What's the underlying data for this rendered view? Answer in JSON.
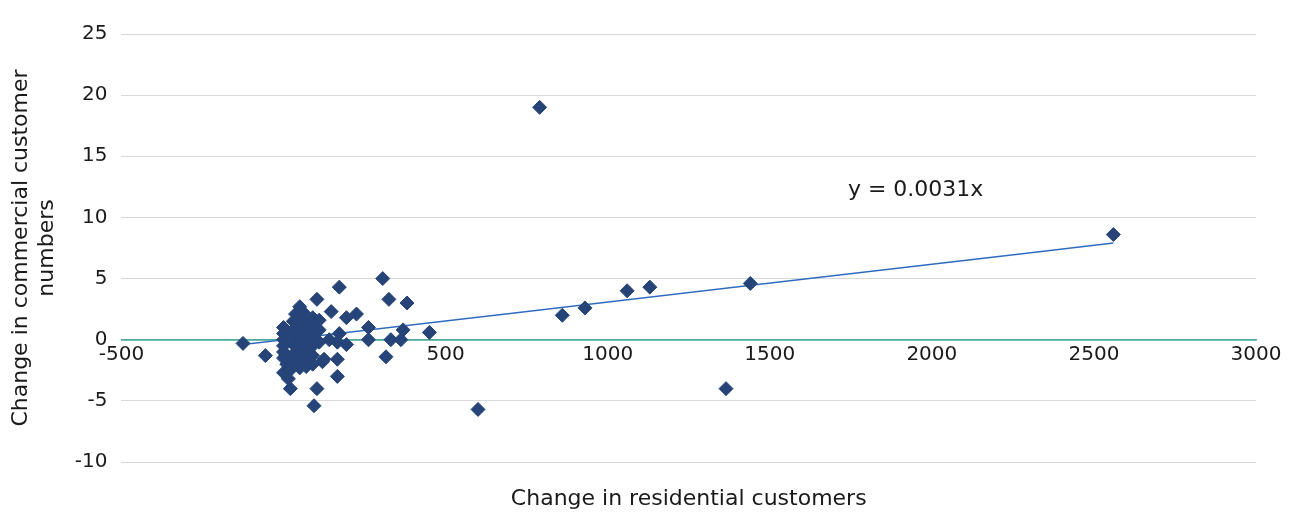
{
  "chart_data": {
    "type": "scatter",
    "xlabel": "Change in residential customers",
    "ylabel": "Change in commercial customer numbers",
    "x": [
      -125,
      -56,
      0,
      21,
      94,
      103,
      166,
      166,
      125,
      172,
      103,
      50,
      147,
      225,
      194,
      306,
      325,
      381,
      262,
      262,
      331,
      362,
      369,
      450,
      316,
      194,
      172,
      166,
      141,
      62,
      37,
      790,
      860,
      930,
      1060,
      1130,
      1440,
      1365,
      2560,
      600,
      0,
      0,
      0,
      0,
      0,
      0,
      10,
      20,
      15,
      30,
      30,
      30,
      30,
      30,
      30,
      50,
      50,
      50,
      50,
      50,
      50,
      50,
      70,
      70,
      70,
      70,
      70,
      70,
      90,
      90,
      90,
      90,
      90,
      90,
      110,
      110,
      110,
      120
    ],
    "values": [
      -0.3,
      -1.3,
      -2.7,
      -4.0,
      -5.4,
      -4.0,
      -3.0,
      -1.6,
      -1.6,
      4.3,
      3.3,
      2.7,
      2.3,
      2.1,
      1.8,
      5.0,
      3.3,
      3.0,
      1.0,
      0,
      0,
      0,
      0.8,
      0.6,
      -1.4,
      -0.4,
      0.5,
      -0.2,
      0,
      2.2,
      2.1,
      19,
      2,
      2.6,
      4,
      4.3,
      4.6,
      -4,
      8.6,
      -5.7,
      1.0,
      0.5,
      0,
      -0.5,
      -1.0,
      -1.5,
      -2.0,
      -2.5,
      -3.2,
      1.5,
      0.8,
      0.2,
      -0.4,
      -1.2,
      -1.8,
      1.8,
      1.0,
      0.3,
      -0.3,
      -1.0,
      -1.7,
      -2.3,
      1.4,
      0.6,
      0,
      -0.8,
      -1.5,
      -2.2,
      1.8,
      1.0,
      0.3,
      -0.5,
      -1.3,
      -2.0,
      1.6,
      0.8,
      -0.2,
      -1.8
    ],
    "color": "#264478",
    "marker": "diamond",
    "series": [
      {
        "type": "line",
        "x": [
          -125,
          2560
        ],
        "values": [
          -0.4,
          7.9
        ],
        "color": "#2e6bbf",
        "marker": "none"
      }
    ],
    "annotations": [
      "y = 0.0031x"
    ],
    "xlim": [
      -500,
      3000
    ],
    "xticks": [
      -500,
      0,
      500,
      1000,
      1500,
      2000,
      2500,
      3000
    ],
    "ylim": [
      -10,
      25
    ],
    "yticks": [
      -10,
      -5,
      0,
      5,
      10,
      15,
      20,
      25
    ],
    "grid": "y",
    "legend": false
  }
}
